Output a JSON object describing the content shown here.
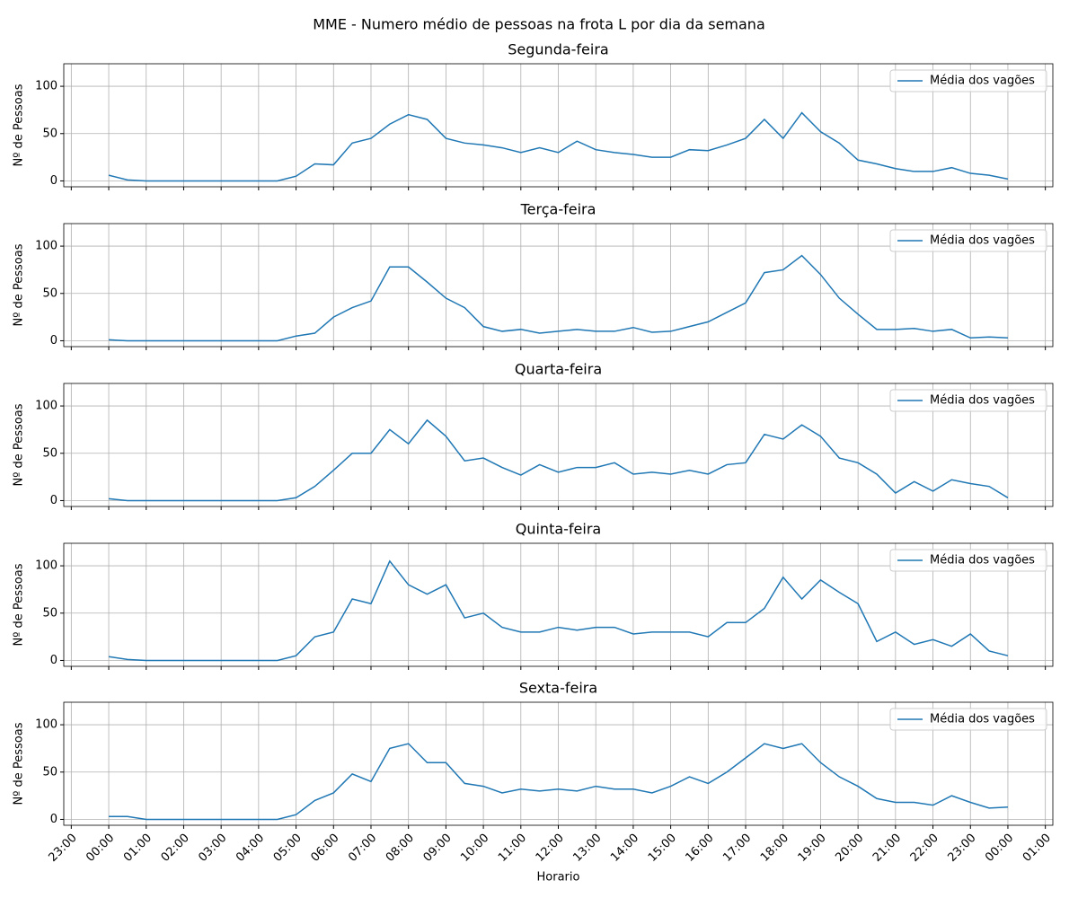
{
  "title": "MME - Numero médio de pessoas na frota L por dia da semana",
  "chart_data": [
    {
      "type": "line",
      "title": "Segunda-feira",
      "ylabel": "Nº de Pessoas",
      "grid": true,
      "legend": "upper right",
      "x": [
        0,
        0.5,
        1,
        1.5,
        2,
        2.5,
        3,
        3.5,
        4,
        4.5,
        5,
        5.5,
        6,
        6.5,
        7,
        7.5,
        8,
        8.5,
        9,
        9.5,
        10,
        10.5,
        11,
        11.5,
        12,
        12.5,
        13,
        13.5,
        14,
        14.5,
        15,
        15.5,
        16,
        16.5,
        17,
        17.5,
        18,
        18.5,
        19,
        19.5,
        20,
        20.5,
        21,
        21.5,
        22,
        22.5,
        23,
        23.5,
        24
      ],
      "ylim": [
        -6.2,
        123.8
      ],
      "yticks": [
        0,
        50,
        100
      ],
      "series": [
        {
          "name": "Média dos vagões",
          "color": "#1f77b4",
          "values": [
            6,
            1,
            0,
            0,
            0,
            0,
            0,
            0,
            0,
            0,
            5,
            18,
            17,
            40,
            45,
            60,
            70,
            65,
            45,
            40,
            38,
            35,
            30,
            35,
            30,
            42,
            33,
            30,
            28,
            25,
            25,
            33,
            32,
            38,
            45,
            65,
            45,
            72,
            52,
            40,
            22,
            18,
            13,
            10,
            10,
            14,
            8,
            6,
            2
          ]
        }
      ]
    },
    {
      "type": "line",
      "title": "Terça-feira",
      "ylabel": "Nº de Pessoas",
      "grid": true,
      "legend": "upper right",
      "x": [
        0,
        0.5,
        1,
        1.5,
        2,
        2.5,
        3,
        3.5,
        4,
        4.5,
        5,
        5.5,
        6,
        6.5,
        7,
        7.5,
        8,
        8.5,
        9,
        9.5,
        10,
        10.5,
        11,
        11.5,
        12,
        12.5,
        13,
        13.5,
        14,
        14.5,
        15,
        15.5,
        16,
        16.5,
        17,
        17.5,
        18,
        18.5,
        19,
        19.5,
        20,
        20.5,
        21,
        21.5,
        22,
        22.5,
        23,
        23.5,
        24
      ],
      "ylim": [
        -6.2,
        123.8
      ],
      "yticks": [
        0,
        50,
        100
      ],
      "series": [
        {
          "name": "Média dos vagões",
          "color": "#1f77b4",
          "values": [
            1,
            0,
            0,
            0,
            0,
            0,
            0,
            0,
            0,
            0,
            5,
            8,
            25,
            35,
            42,
            78,
            78,
            62,
            45,
            35,
            15,
            10,
            12,
            8,
            10,
            12,
            10,
            10,
            14,
            9,
            10,
            15,
            20,
            30,
            40,
            72,
            75,
            90,
            70,
            45,
            28,
            12,
            12,
            13,
            10,
            12,
            3,
            4,
            3
          ]
        }
      ]
    },
    {
      "type": "line",
      "title": "Quarta-feira",
      "ylabel": "Nº de Pessoas",
      "grid": true,
      "legend": "upper right",
      "x": [
        0,
        0.5,
        1,
        1.5,
        2,
        2.5,
        3,
        3.5,
        4,
        4.5,
        5,
        5.5,
        6,
        6.5,
        7,
        7.5,
        8,
        8.5,
        9,
        9.5,
        10,
        10.5,
        11,
        11.5,
        12,
        12.5,
        13,
        13.5,
        14,
        14.5,
        15,
        15.5,
        16,
        16.5,
        17,
        17.5,
        18,
        18.5,
        19,
        19.5,
        20,
        20.5,
        21,
        21.5,
        22,
        22.5,
        23,
        23.5,
        24
      ],
      "ylim": [
        -6.2,
        123.8
      ],
      "yticks": [
        0,
        50,
        100
      ],
      "series": [
        {
          "name": "Média dos vagões",
          "color": "#1f77b4",
          "values": [
            2,
            0,
            0,
            0,
            0,
            0,
            0,
            0,
            0,
            0,
            3,
            15,
            32,
            50,
            50,
            75,
            60,
            85,
            68,
            42,
            45,
            35,
            27,
            38,
            30,
            35,
            35,
            40,
            28,
            30,
            28,
            32,
            28,
            38,
            40,
            70,
            65,
            80,
            68,
            45,
            40,
            28,
            8,
            20,
            10,
            22,
            18,
            15,
            3
          ]
        }
      ]
    },
    {
      "type": "line",
      "title": "Quinta-feira",
      "ylabel": "Nº de Pessoas",
      "grid": true,
      "legend": "upper right",
      "x": [
        0,
        0.5,
        1,
        1.5,
        2,
        2.5,
        3,
        3.5,
        4,
        4.5,
        5,
        5.5,
        6,
        6.5,
        7,
        7.5,
        8,
        8.5,
        9,
        9.5,
        10,
        10.5,
        11,
        11.5,
        12,
        12.5,
        13,
        13.5,
        14,
        14.5,
        15,
        15.5,
        16,
        16.5,
        17,
        17.5,
        18,
        18.5,
        19,
        19.5,
        20,
        20.5,
        21,
        21.5,
        22,
        22.5,
        23,
        23.5,
        24
      ],
      "ylim": [
        -6.2,
        123.8
      ],
      "yticks": [
        0,
        50,
        100
      ],
      "series": [
        {
          "name": "Média dos vagões",
          "color": "#1f77b4",
          "values": [
            4,
            1,
            0,
            0,
            0,
            0,
            0,
            0,
            0,
            0,
            5,
            25,
            30,
            65,
            60,
            105,
            80,
            70,
            80,
            45,
            50,
            35,
            30,
            30,
            35,
            32,
            35,
            35,
            28,
            30,
            30,
            30,
            25,
            40,
            40,
            55,
            88,
            65,
            85,
            72,
            60,
            20,
            30,
            17,
            22,
            15,
            28,
            10,
            5
          ]
        }
      ]
    },
    {
      "type": "line",
      "title": "Sexta-feira",
      "ylabel": "Nº de Pessoas",
      "xlabel": "Horario",
      "grid": true,
      "legend": "upper right",
      "x": [
        0,
        0.5,
        1,
        1.5,
        2,
        2.5,
        3,
        3.5,
        4,
        4.5,
        5,
        5.5,
        6,
        6.5,
        7,
        7.5,
        8,
        8.5,
        9,
        9.5,
        10,
        10.5,
        11,
        11.5,
        12,
        12.5,
        13,
        13.5,
        14,
        14.5,
        15,
        15.5,
        16,
        16.5,
        17,
        17.5,
        18,
        18.5,
        19,
        19.5,
        20,
        20.5,
        21,
        21.5,
        22,
        22.5,
        23,
        23.5,
        24
      ],
      "xlim": [
        -1.2,
        25.2
      ],
      "xticks": [
        {
          "value": -1,
          "label": "23:00"
        },
        {
          "value": 0,
          "label": "00:00"
        },
        {
          "value": 1,
          "label": "01:00"
        },
        {
          "value": 2,
          "label": "02:00"
        },
        {
          "value": 3,
          "label": "03:00"
        },
        {
          "value": 4,
          "label": "04:00"
        },
        {
          "value": 5,
          "label": "05:00"
        },
        {
          "value": 6,
          "label": "06:00"
        },
        {
          "value": 7,
          "label": "07:00"
        },
        {
          "value": 8,
          "label": "08:00"
        },
        {
          "value": 9,
          "label": "09:00"
        },
        {
          "value": 10,
          "label": "10:00"
        },
        {
          "value": 11,
          "label": "11:00"
        },
        {
          "value": 12,
          "label": "12:00"
        },
        {
          "value": 13,
          "label": "13:00"
        },
        {
          "value": 14,
          "label": "14:00"
        },
        {
          "value": 15,
          "label": "15:00"
        },
        {
          "value": 16,
          "label": "16:00"
        },
        {
          "value": 17,
          "label": "17:00"
        },
        {
          "value": 18,
          "label": "18:00"
        },
        {
          "value": 19,
          "label": "19:00"
        },
        {
          "value": 20,
          "label": "20:00"
        },
        {
          "value": 21,
          "label": "21:00"
        },
        {
          "value": 22,
          "label": "22:00"
        },
        {
          "value": 23,
          "label": "23:00"
        },
        {
          "value": 24,
          "label": "00:00"
        },
        {
          "value": 25,
          "label": "01:00"
        }
      ],
      "ylim": [
        -6.2,
        123.8
      ],
      "yticks": [
        0,
        50,
        100
      ],
      "series": [
        {
          "name": "Média dos vagões",
          "color": "#1f77b4",
          "values": [
            3,
            3,
            0,
            0,
            0,
            0,
            0,
            0,
            0,
            0,
            5,
            20,
            28,
            48,
            40,
            75,
            80,
            60,
            60,
            38,
            35,
            28,
            32,
            30,
            32,
            30,
            35,
            32,
            32,
            28,
            35,
            45,
            38,
            50,
            65,
            80,
            75,
            80,
            60,
            45,
            35,
            22,
            18,
            18,
            15,
            25,
            18,
            12,
            13
          ]
        }
      ]
    }
  ]
}
